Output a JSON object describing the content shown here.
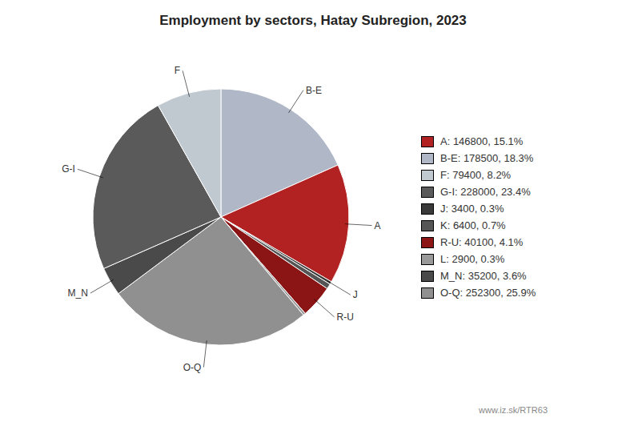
{
  "chart_data": {
    "type": "pie",
    "title": "Employment by sectors, Hatay Subregion, 2023",
    "categories": [
      "B-E",
      "A",
      "J",
      null,
      "R-U",
      null,
      "O-Q",
      "M_N",
      "G-I",
      "F"
    ],
    "values": [
      178500,
      146800,
      3400,
      6400,
      40100,
      2900,
      252300,
      35200,
      228000,
      79400
    ],
    "colors": [
      "#b0b8c8",
      "#b22222",
      "#3a3a3a",
      "#555555",
      "#8b1515",
      "#999999",
      "#909090",
      "#4a4a4a",
      "#5a5a5a",
      "#c0c8d0"
    ],
    "legend": "right",
    "legend_labels": [
      "A: 146800, 15.1%",
      "B-E: 178500, 18.3%",
      "F: 79400, 8.2%",
      "G-I: 228000, 23.4%",
      "J: 3400, 0.3%",
      "K: 6400, 0.7%",
      "R-U: 40100, 4.1%",
      "L: 2900, 0.3%",
      "M_N: 35200, 3.6%",
      "O-Q: 252300, 25.9%"
    ],
    "legend_colors": [
      "#b22222",
      "#b0b8c8",
      "#c0c8d0",
      "#5a5a5a",
      "#3a3a3a",
      "#555555",
      "#8b1515",
      "#999999",
      "#4a4a4a",
      "#909090"
    ],
    "annotations": [
      "www.iz.sk/RTR63"
    ]
  }
}
